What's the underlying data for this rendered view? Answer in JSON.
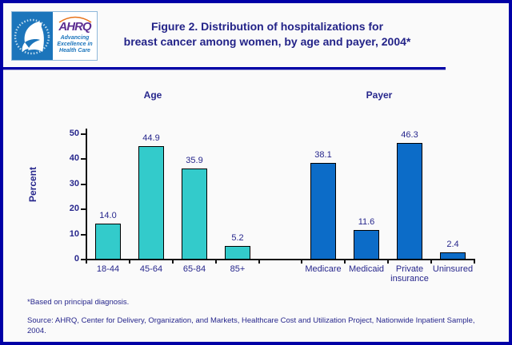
{
  "logo": {
    "ahrq_word": "AHRQ",
    "tagline": "Advancing\nExcellence in\nHealth Care"
  },
  "title": {
    "line1": "Figure 2. Distribution of hospitalizations for",
    "line2": "breast cancer among women, by age and payer, 2004*"
  },
  "colors": {
    "frame_border": "#0000A6",
    "navy_text": "#26268C",
    "age_bar": "#33CBCB",
    "payer_bar": "#0C6CC8",
    "hhs_blue": "#1C75BB",
    "ahrq_purple": "#5C2D91"
  },
  "chart_data": {
    "type": "bar",
    "title": "",
    "xlabel": "",
    "ylabel": "Percent",
    "ylim": [
      0,
      50
    ],
    "yticks": [
      0,
      10,
      20,
      30,
      40,
      50
    ],
    "grid": false,
    "legend": "none",
    "gap_slots": 1,
    "groups": [
      {
        "label": "Age",
        "color": "#33CBCB",
        "categories": [
          "18-44",
          "45-64",
          "65-84",
          "85+"
        ],
        "values": [
          14.0,
          44.9,
          35.9,
          5.2
        ]
      },
      {
        "label": "Payer",
        "color": "#0C6CC8",
        "categories": [
          "Medicare",
          "Medicaid",
          "Private insurance",
          "Uninsured"
        ],
        "values": [
          38.1,
          11.6,
          46.3,
          2.4
        ]
      }
    ]
  },
  "footnote": "*Based on principal diagnosis.",
  "source": "Source: AHRQ, Center for Delivery, Organization, and Markets, Healthcare Cost and Utilization Project, Nationwide Inpatient Sample, 2004."
}
